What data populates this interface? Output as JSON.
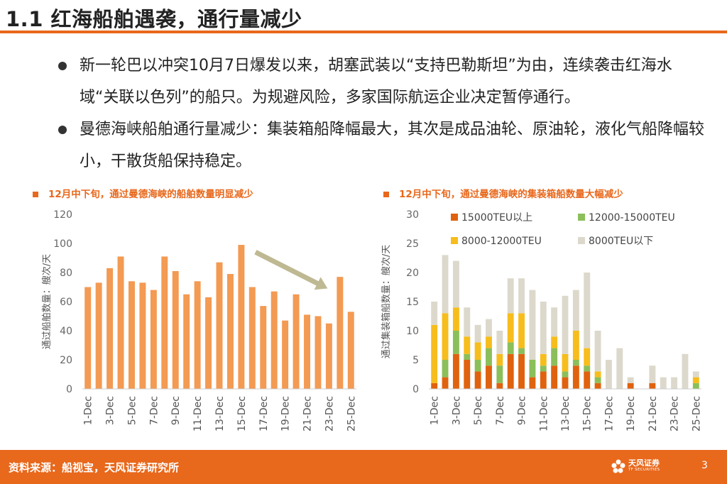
{
  "header": {
    "title": "1.1 红海船舶遇袭，通行量减少"
  },
  "bullets": [
    "新一轮巴以冲突10月7日爆发以来，胡塞武装以“支持巴勒斯坦”为由，连续袭击红海水域“关联以色列”的船只。为规避风险，多家国际航运企业决定暂停通行。",
    "曼德海峡船舶通行量减少：集装箱船降幅最大，其次是成品油轮、原油轮，液化气船降幅较小，干散货船保持稳定。"
  ],
  "colors": {
    "accent": "#e8681c",
    "bar": "#f39a53",
    "arrow": "#bfb993",
    "c1": "#e0620e",
    "c2": "#8bbf5a",
    "c3": "#f7bd1c",
    "c4": "#dcd9cc"
  },
  "chart_data": [
    {
      "type": "bar",
      "title": "12月中下旬，通过曼德海峡的船舶数量明显减少",
      "ylabel": "通过船舶数量：艘次/天",
      "xlabel": "",
      "ylim": [
        0,
        120
      ],
      "yticks": [
        0,
        20,
        40,
        60,
        80,
        100,
        120
      ],
      "categories": [
        "1-Dec",
        "2-Dec",
        "3-Dec",
        "4-Dec",
        "5-Dec",
        "6-Dec",
        "7-Dec",
        "8-Dec",
        "9-Dec",
        "10-Dec",
        "11-Dec",
        "12-Dec",
        "13-Dec",
        "14-Dec",
        "15-Dec",
        "16-Dec",
        "17-Dec",
        "18-Dec",
        "19-Dec",
        "20-Dec",
        "21-Dec",
        "22-Dec",
        "23-Dec",
        "24-Dec",
        "25-Dec"
      ],
      "xtick_labels": [
        "1-Dec",
        "3-Dec",
        "5-Dec",
        "7-Dec",
        "9-Dec",
        "11-Dec",
        "13-Dec",
        "15-Dec",
        "17-Dec",
        "19-Dec",
        "21-Dec",
        "23-Dec",
        "25-Dec"
      ],
      "values": [
        70,
        73,
        83,
        91,
        74,
        73,
        68,
        91,
        81,
        65,
        74,
        63,
        87,
        79,
        99,
        70,
        57,
        67,
        47,
        65,
        51,
        50,
        45,
        77,
        53
      ],
      "annotation": "downward trend arrow from 15-Dec to 23-Dec"
    },
    {
      "type": "bar",
      "stacked": true,
      "title": "12月中下旬，通过曼德海峡的集装箱船数量大幅减少",
      "ylabel": "通过集装箱船数量：艘次/天",
      "xlabel": "",
      "ylim": [
        0,
        30
      ],
      "yticks": [
        0,
        5,
        10,
        15,
        20,
        25,
        30
      ],
      "legend_position": "top",
      "categories": [
        "1-Dec",
        "2-Dec",
        "3-Dec",
        "4-Dec",
        "5-Dec",
        "6-Dec",
        "7-Dec",
        "8-Dec",
        "9-Dec",
        "10-Dec",
        "11-Dec",
        "12-Dec",
        "13-Dec",
        "14-Dec",
        "15-Dec",
        "16-Dec",
        "17-Dec",
        "18-Dec",
        "19-Dec",
        "20-Dec",
        "21-Dec",
        "22-Dec",
        "23-Dec",
        "24-Dec",
        "25-Dec"
      ],
      "xtick_labels": [
        "1-Dec",
        "3-Dec",
        "5-Dec",
        "7-Dec",
        "9-Dec",
        "11-Dec",
        "13-Dec",
        "15-Dec",
        "17-Dec",
        "19-Dec",
        "21-Dec",
        "23-Dec",
        "25-Dec"
      ],
      "series": [
        {
          "name": "15000TEU以上",
          "color": "#e0620e",
          "values": [
            1,
            2,
            6,
            5,
            3,
            4,
            1,
            6,
            6,
            2,
            3,
            4,
            2,
            4,
            3,
            1,
            0,
            0,
            1,
            0,
            1,
            0,
            0,
            0,
            0
          ]
        },
        {
          "name": "12000-15000TEU",
          "color": "#8bbf5a",
          "values": [
            0,
            3,
            4,
            1,
            2,
            3,
            3,
            2,
            1,
            3,
            1,
            3,
            1,
            1,
            1,
            1,
            0,
            0,
            0,
            0,
            0,
            0,
            0,
            0,
            1
          ]
        },
        {
          "name": "8000-12000TEU",
          "color": "#f7bd1c",
          "values": [
            10,
            8,
            4,
            3,
            3,
            2,
            2,
            5,
            6,
            0,
            2,
            2,
            3,
            5,
            3,
            1,
            0,
            0,
            0,
            0,
            0,
            0,
            0,
            0,
            1
          ]
        },
        {
          "name": "8000TEU以下",
          "color": "#dcd9cc",
          "values": [
            4,
            10,
            8,
            5,
            3,
            3,
            4,
            6,
            6,
            12,
            9,
            5,
            10,
            7,
            13,
            7,
            5,
            7,
            1,
            0,
            3,
            2,
            2,
            6,
            1
          ]
        }
      ]
    }
  ],
  "footer": {
    "source": "资料来源：船视宝，天风证券研究所",
    "logo_text": "天风证券",
    "logo_sub": "TF SECURITIES",
    "page_number": "3"
  }
}
